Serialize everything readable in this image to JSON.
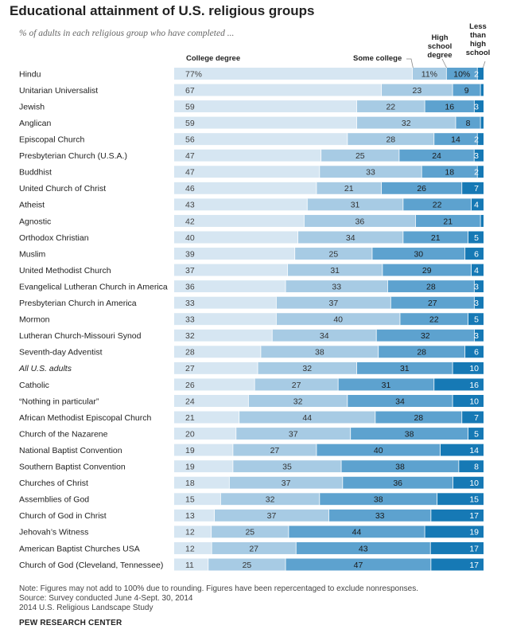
{
  "title": "Educational attainment of U.S. religious groups",
  "subtitle": "% of adults in each religious group who have completed ...",
  "chart_data": {
    "type": "bar",
    "stacked": true,
    "orientation": "horizontal",
    "title": "Educational attainment of U.S. religious groups",
    "series": [
      {
        "name": "College degree",
        "label": "College degree",
        "color": "#d6e6f2"
      },
      {
        "name": "Some college",
        "label": "Some college",
        "color": "#a7cbe4"
      },
      {
        "name": "High school degree",
        "label": "High school degree",
        "color": "#5da2cf"
      },
      {
        "name": "Less than high school",
        "label": "Less than high school",
        "color": "#1679b5"
      }
    ],
    "rows": [
      {
        "label": "Hindu",
        "values": [
          77,
          11,
          10,
          2
        ],
        "display": [
          "77%",
          "11%",
          "10%",
          "2"
        ]
      },
      {
        "label": "Unitarian Universalist",
        "values": [
          67,
          23,
          9,
          1
        ],
        "display": [
          "67",
          "23",
          "9",
          ""
        ]
      },
      {
        "label": "Jewish",
        "values": [
          59,
          22,
          16,
          3
        ],
        "display": [
          "59",
          "22",
          "16",
          "3"
        ]
      },
      {
        "label": "Anglican",
        "values": [
          59,
          32,
          8,
          1
        ],
        "display": [
          "59",
          "32",
          "8",
          ""
        ]
      },
      {
        "label": "Episcopal Church",
        "values": [
          56,
          28,
          14,
          2
        ],
        "display": [
          "56",
          "28",
          "14",
          "2"
        ]
      },
      {
        "label": "Presbyterian Church (U.S.A.)",
        "values": [
          47,
          25,
          24,
          3
        ],
        "display": [
          "47",
          "25",
          "24",
          "3"
        ]
      },
      {
        "label": "Buddhist",
        "values": [
          47,
          33,
          18,
          2
        ],
        "display": [
          "47",
          "33",
          "18",
          "2"
        ]
      },
      {
        "label": "United Church of Christ",
        "values": [
          46,
          21,
          26,
          7
        ],
        "display": [
          "46",
          "21",
          "26",
          "7"
        ]
      },
      {
        "label": "Atheist",
        "values": [
          43,
          31,
          22,
          4
        ],
        "display": [
          "43",
          "31",
          "22",
          "4"
        ]
      },
      {
        "label": "Agnostic",
        "values": [
          42,
          36,
          21,
          1
        ],
        "display": [
          "42",
          "36",
          "21",
          ""
        ]
      },
      {
        "label": "Orthodox Christian",
        "values": [
          40,
          34,
          21,
          5
        ],
        "display": [
          "40",
          "34",
          "21",
          "5"
        ]
      },
      {
        "label": "Muslim",
        "values": [
          39,
          25,
          30,
          6
        ],
        "display": [
          "39",
          "25",
          "30",
          "6"
        ]
      },
      {
        "label": "United Methodist Church",
        "values": [
          37,
          31,
          29,
          4
        ],
        "display": [
          "37",
          "31",
          "29",
          "4"
        ]
      },
      {
        "label": "Evangelical Lutheran Church in America",
        "values": [
          36,
          33,
          28,
          3
        ],
        "display": [
          "36",
          "33",
          "28",
          "3"
        ]
      },
      {
        "label": "Presbyterian Church in America",
        "values": [
          33,
          37,
          27,
          3
        ],
        "display": [
          "33",
          "37",
          "27",
          "3"
        ]
      },
      {
        "label": "Mormon",
        "values": [
          33,
          40,
          22,
          5
        ],
        "display": [
          "33",
          "40",
          "22",
          "5"
        ]
      },
      {
        "label": "Lutheran Church-Missouri Synod",
        "values": [
          32,
          34,
          32,
          3
        ],
        "display": [
          "32",
          "34",
          "32",
          "3"
        ]
      },
      {
        "label": "Seventh-day Adventist",
        "values": [
          28,
          38,
          28,
          6
        ],
        "display": [
          "28",
          "38",
          "28",
          "6"
        ]
      },
      {
        "label": "All U.S. adults",
        "values": [
          27,
          32,
          31,
          10
        ],
        "display": [
          "27",
          "32",
          "31",
          "10"
        ],
        "italic": true
      },
      {
        "label": "Catholic",
        "values": [
          26,
          27,
          31,
          16
        ],
        "display": [
          "26",
          "27",
          "31",
          "16"
        ]
      },
      {
        "label": "“Nothing in particular”",
        "values": [
          24,
          32,
          34,
          10
        ],
        "display": [
          "24",
          "32",
          "34",
          "10"
        ]
      },
      {
        "label": "African Methodist Episcopal Church",
        "values": [
          21,
          44,
          28,
          7
        ],
        "display": [
          "21",
          "44",
          "28",
          "7"
        ]
      },
      {
        "label": "Church of the Nazarene",
        "values": [
          20,
          37,
          38,
          5
        ],
        "display": [
          "20",
          "37",
          "38",
          "5"
        ]
      },
      {
        "label": "National Baptist Convention",
        "values": [
          19,
          27,
          40,
          14
        ],
        "display": [
          "19",
          "27",
          "40",
          "14"
        ]
      },
      {
        "label": "Southern Baptist Convention",
        "values": [
          19,
          35,
          38,
          8
        ],
        "display": [
          "19",
          "35",
          "38",
          "8"
        ]
      },
      {
        "label": "Churches of Christ",
        "values": [
          18,
          37,
          36,
          10
        ],
        "display": [
          "18",
          "37",
          "36",
          "10"
        ]
      },
      {
        "label": "Assemblies of God",
        "values": [
          15,
          32,
          38,
          15
        ],
        "display": [
          "15",
          "32",
          "38",
          "15"
        ]
      },
      {
        "label": "Church of God in Christ",
        "values": [
          13,
          37,
          33,
          17
        ],
        "display": [
          "13",
          "37",
          "33",
          "17"
        ]
      },
      {
        "label": "Jehovah’s Witness",
        "values": [
          12,
          25,
          44,
          19
        ],
        "display": [
          "12",
          "25",
          "44",
          "19"
        ]
      },
      {
        "label": "American Baptist Churches USA",
        "values": [
          12,
          27,
          43,
          17
        ],
        "display": [
          "12",
          "27",
          "43",
          "17"
        ]
      },
      {
        "label": "Church of God (Cleveland, Tennessee)",
        "values": [
          11,
          25,
          47,
          17
        ],
        "display": [
          "11",
          "25",
          "47",
          "17"
        ]
      }
    ]
  },
  "column_headers": {
    "college": "College degree",
    "some_college": "Some college",
    "high_school_lines": [
      "High",
      "school",
      "degree"
    ],
    "less_than_hs_lines": [
      "Less",
      "than",
      "high",
      "school"
    ]
  },
  "notes": {
    "note": "Note: Figures may not add to 100% due to rounding. Figures have been repercentaged to exclude nonresponses.",
    "source": "Source: Survey conducted June 4-Sept. 30, 2014",
    "study": "2014 U.S. Religious Landscape Study",
    "org": "PEW RESEARCH CENTER"
  }
}
